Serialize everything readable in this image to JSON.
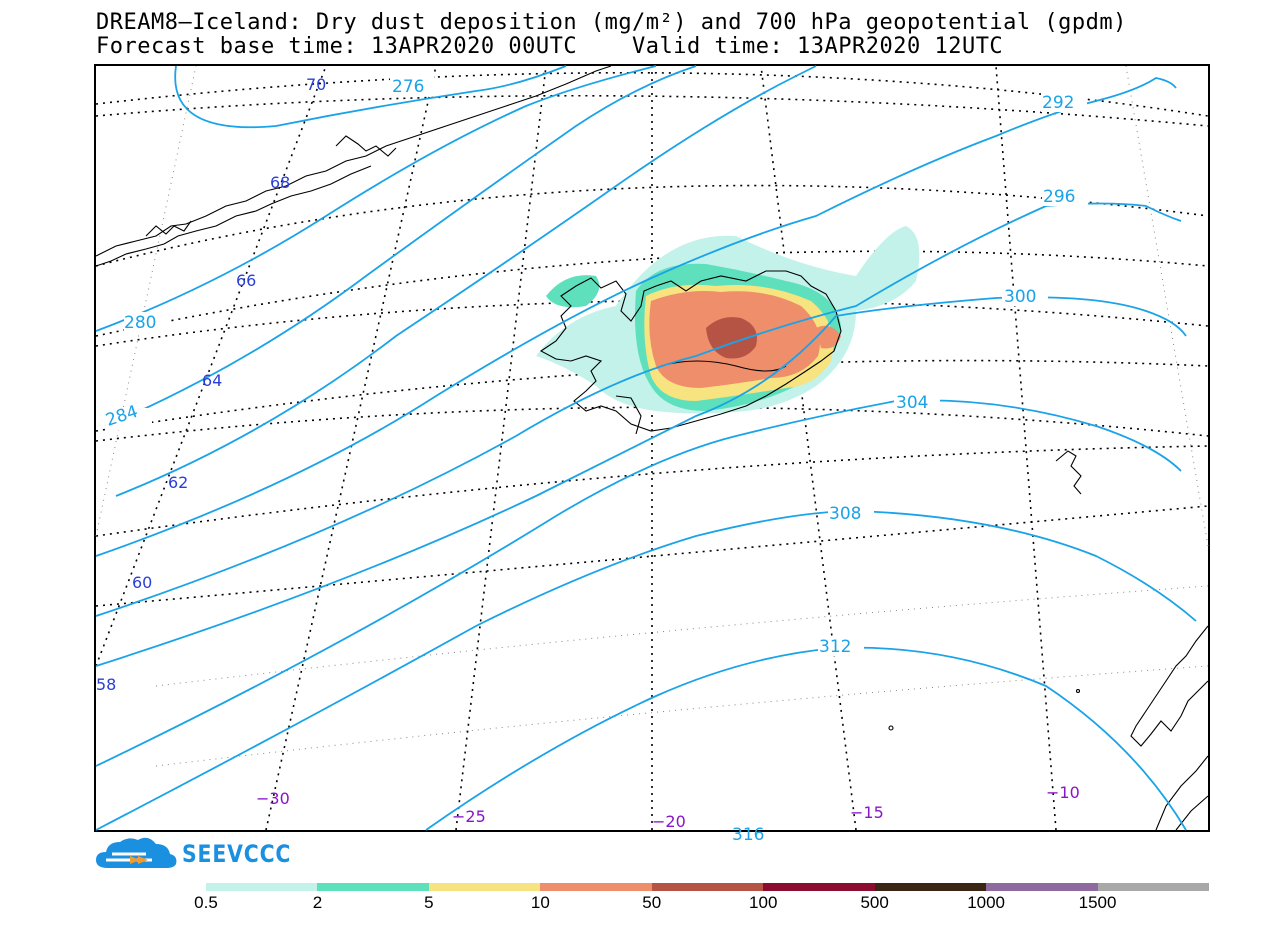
{
  "title_line1": "DREAM8–Iceland: Dry dust deposition (mg/m²) and 700 hPa geopotential (gpdm)",
  "title_line2": "Forecast base time: 13APR2020 00UTC    Valid time: 13APR2020 12UTC",
  "logo_text": "SEEVCCC",
  "colors": {
    "isoline": "#1aa3e8",
    "lat_label": "#2a3fd6",
    "lon_label": "#8a14c8",
    "coastline": "#000000"
  },
  "geopotential_labels": [
    "276",
    "280",
    "284",
    "292",
    "296",
    "300",
    "304",
    "308",
    "312",
    "316"
  ],
  "latitude_labels": [
    "70",
    "68",
    "66",
    "64",
    "62",
    "60",
    "58"
  ],
  "longitude_labels": [
    "−30",
    "−25",
    "−20",
    "−15",
    "−10"
  ],
  "colorbar": {
    "colors": [
      "#c2f2ea",
      "#5fe0bd",
      "#f7e37f",
      "#ee8e6b",
      "#b55445",
      "#8b0c2e",
      "#3b2614",
      "#8e6a9e",
      "#a8a8a8"
    ],
    "labels": [
      "0.5",
      "2",
      "5",
      "10",
      "50",
      "100",
      "500",
      "1000",
      "1500"
    ]
  }
}
